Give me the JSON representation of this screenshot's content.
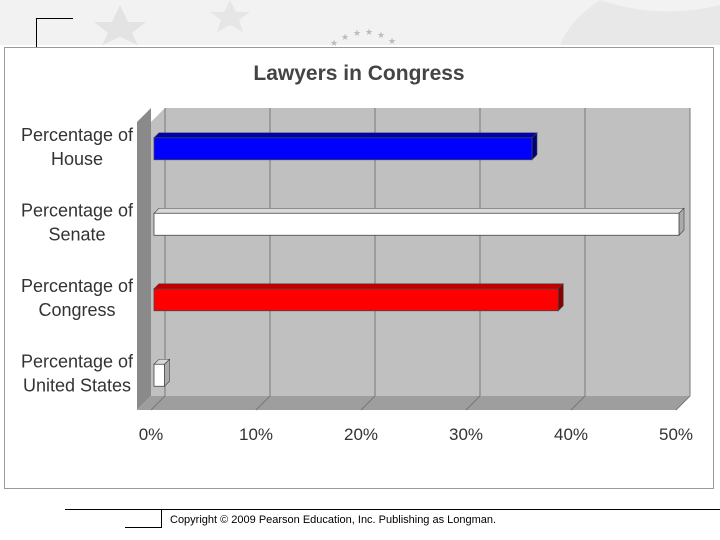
{
  "chart_data": {
    "type": "bar",
    "orientation": "horizontal",
    "title": "Lawyers in Congress",
    "categories": [
      "Percentage of House",
      "Percentage of Senate",
      "Percentage of Congress",
      "Percentage of United States"
    ],
    "category_lines": [
      [
        "Percentage of",
        "House"
      ],
      [
        "Percentage of",
        "Senate"
      ],
      [
        "Percentage of",
        "Congress"
      ],
      [
        "Percentage of",
        "United States"
      ]
    ],
    "values": [
      36,
      50,
      38.5,
      1
    ],
    "colors": [
      "#0000ff",
      "#ffffff",
      "#ff0000",
      "#ffffff"
    ],
    "xlim": [
      0,
      50
    ],
    "x_ticks": [
      "0%",
      "10%",
      "20%",
      "30%",
      "40%",
      "50%"
    ],
    "grid": true,
    "legend": "none"
  },
  "footer": {
    "copyright": "Copyright © 2009 Pearson Education, Inc. Publishing as Longman."
  }
}
